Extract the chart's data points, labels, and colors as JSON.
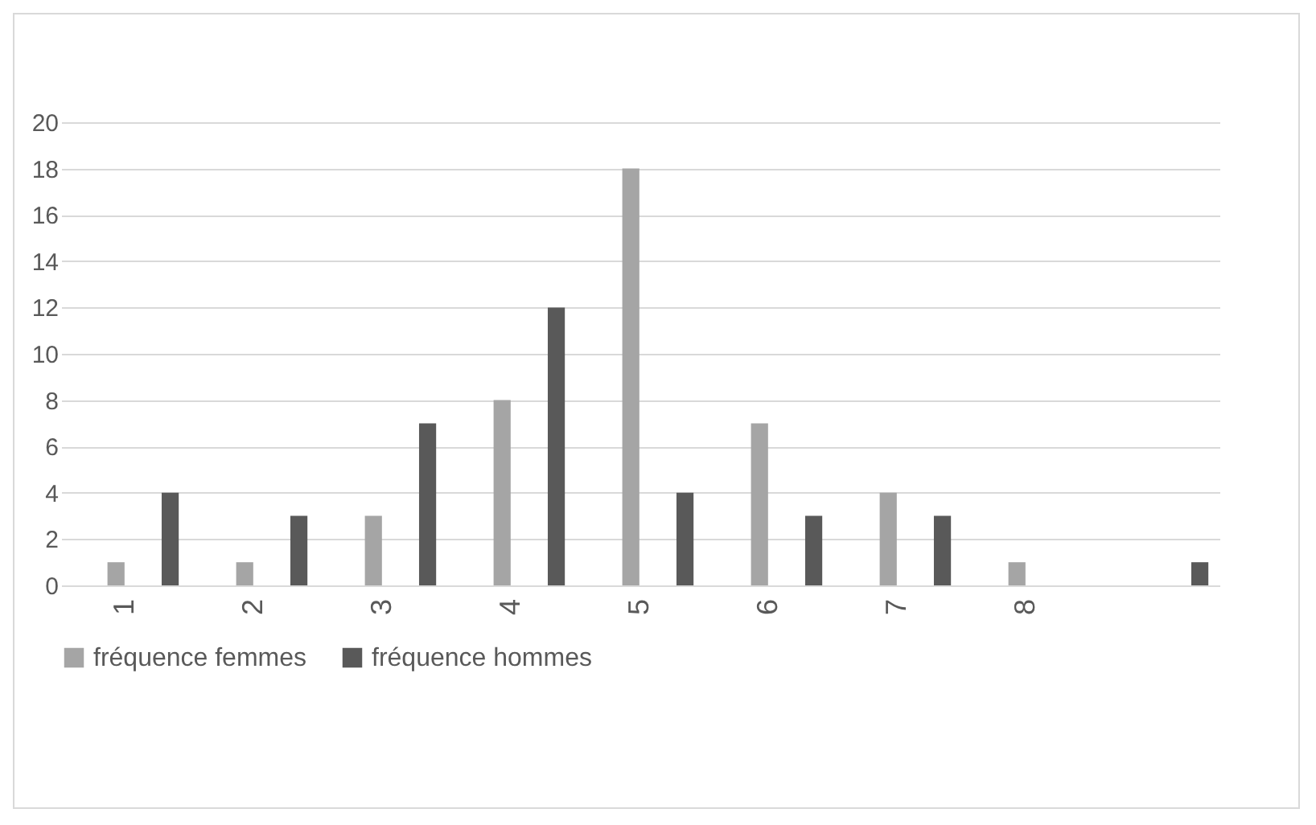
{
  "chart_data": {
    "type": "bar",
    "categories": [
      "1",
      "2",
      "3",
      "4",
      "5",
      "6",
      "7",
      "8",
      null
    ],
    "series": [
      {
        "name": "fréquence femmes",
        "color": "#a5a5a5",
        "values": [
          1,
          1,
          3,
          8,
          18,
          7,
          4,
          1,
          0
        ]
      },
      {
        "name": "fréquence hommes",
        "color": "#595959",
        "values": [
          4,
          3,
          7,
          12,
          4,
          3,
          3,
          0,
          1
        ]
      }
    ],
    "ylim": [
      0,
      20
    ],
    "yticks": [
      0,
      2,
      4,
      6,
      8,
      10,
      12,
      14,
      16,
      18,
      20
    ],
    "grid": "y",
    "legend": "bottom"
  }
}
